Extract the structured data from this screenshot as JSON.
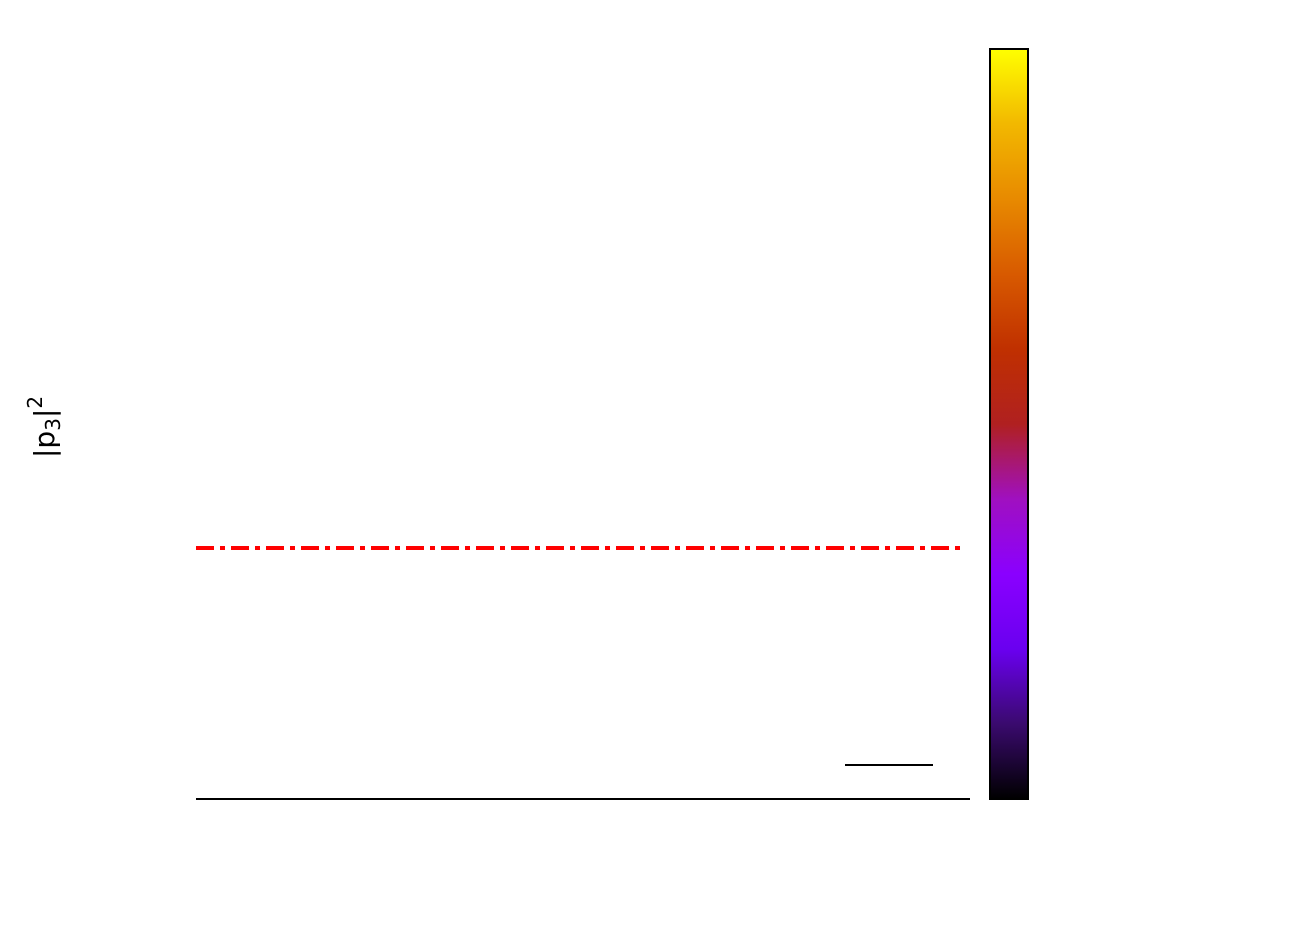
{
  "chart_data": {
    "type": "heatmap",
    "title": "",
    "xlabel": "",
    "ylabel": {
      "base": "|p",
      "subscript": "3",
      "close": "|",
      "superscript": "2"
    },
    "grid": false,
    "colorbar": {
      "colormap": "gnuplot",
      "position": "right",
      "stops": [
        "#000000",
        "#3a0a6e",
        "#6a00f0",
        "#8a00ff",
        "#a010c0",
        "#b02020",
        "#c03000",
        "#d85a00",
        "#e88a00",
        "#f2b800",
        "#ffff00"
      ]
    },
    "reference_line": {
      "style": "dash-dot",
      "color": "#ff0000"
    },
    "legend_swatch": {
      "color": "#000000",
      "placement": "bottom-right"
    }
  }
}
